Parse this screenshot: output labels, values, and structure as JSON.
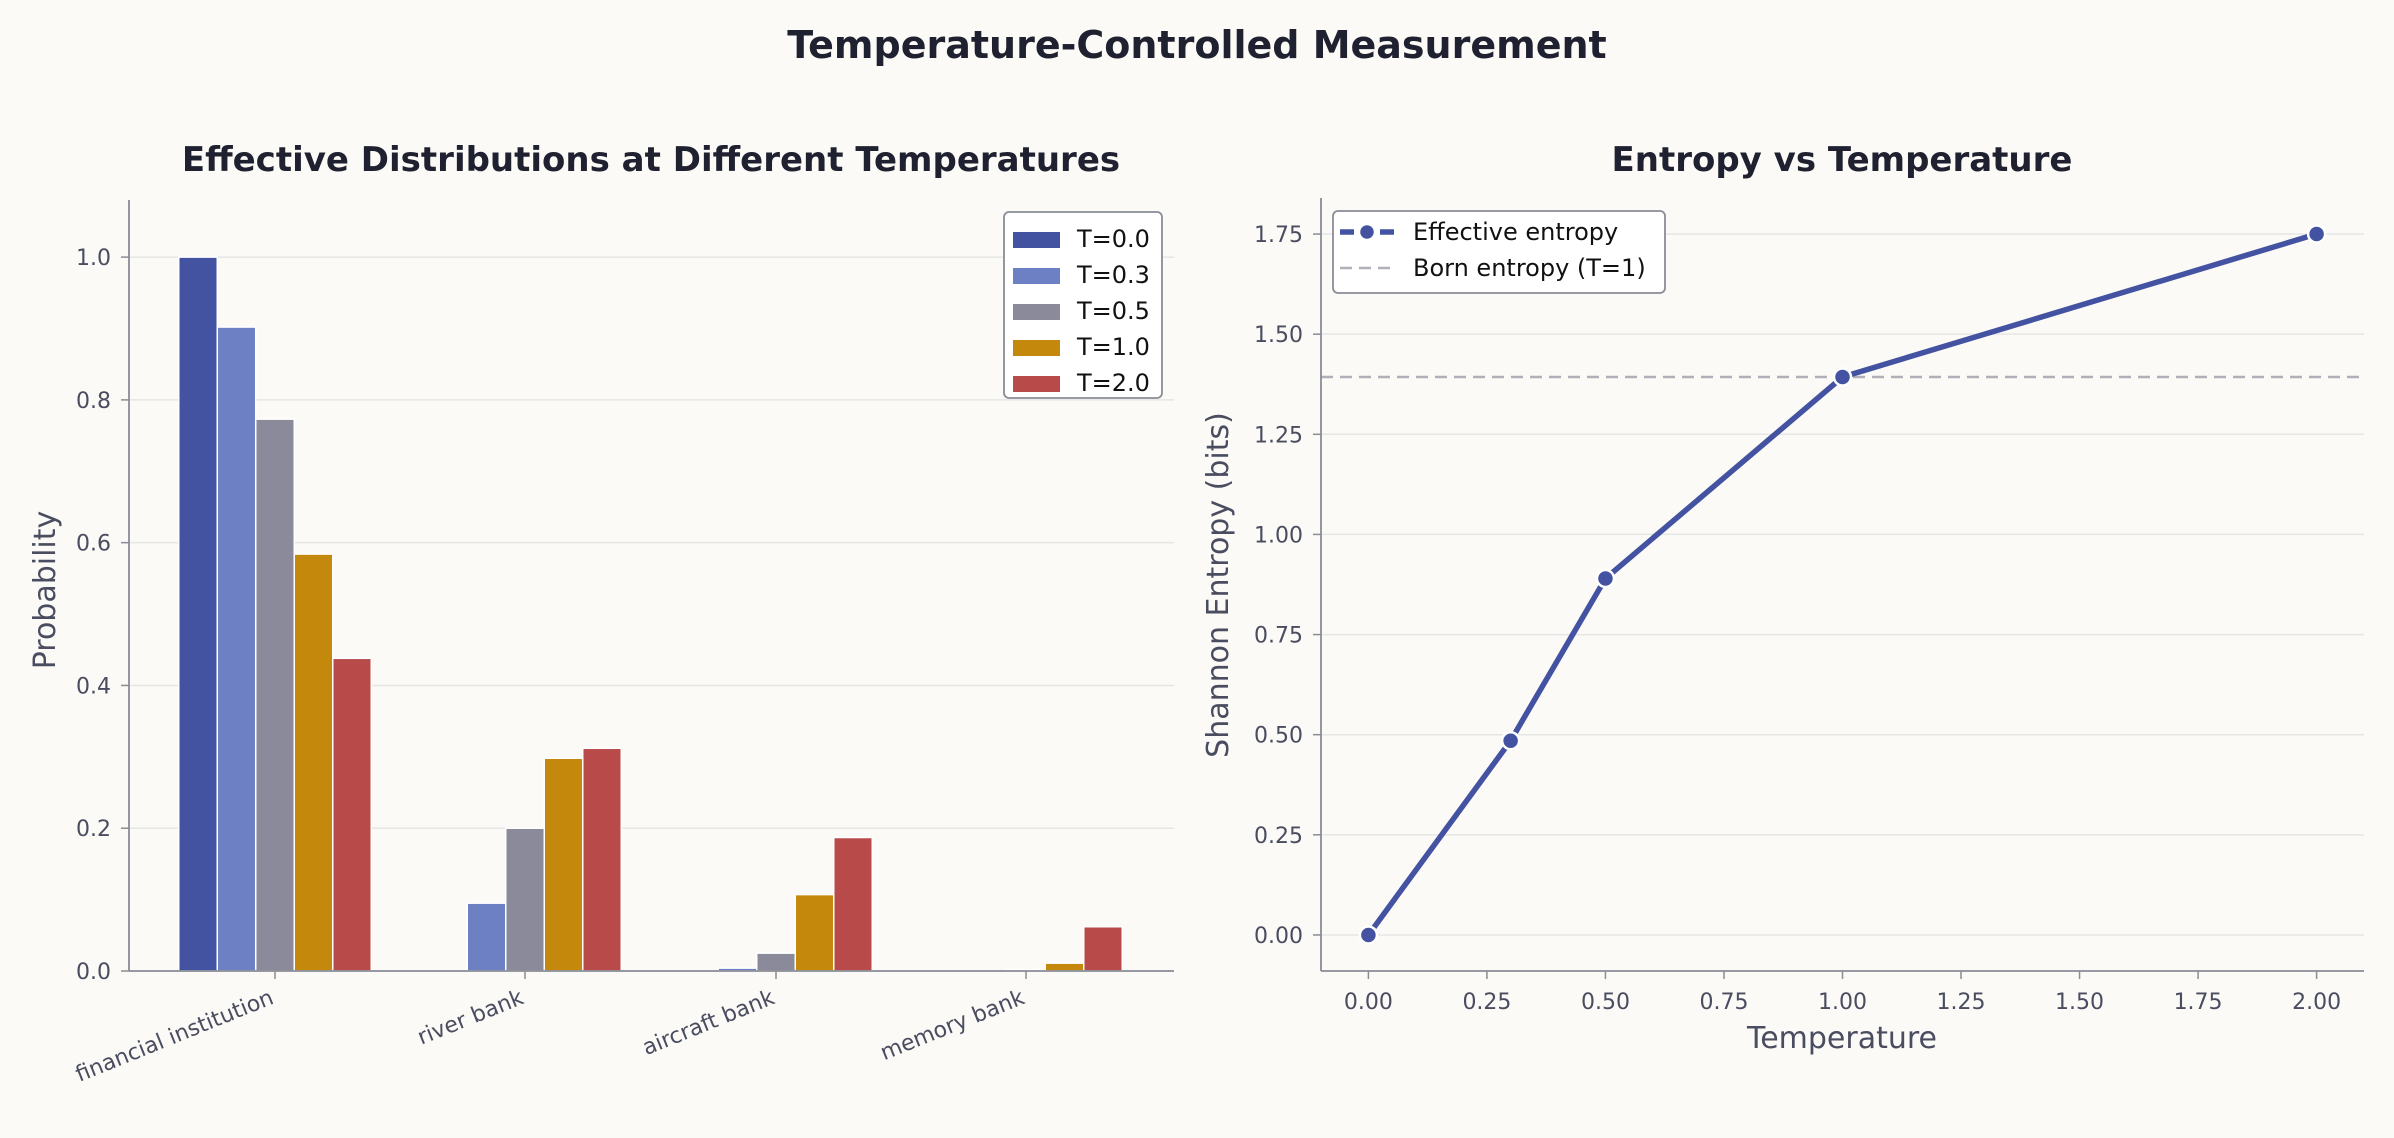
{
  "figure": {
    "title": "Temperature-Controlled Measurement"
  },
  "colors": {
    "T0": "#4353a1",
    "T03": "#6d80c4",
    "T05": "#8a8a9a",
    "T1": "#c4880c",
    "T2": "#b84a4a",
    "line": "#4353a1",
    "born": "#b0b0b8"
  },
  "chart_data": [
    {
      "type": "bar",
      "title": "Effective Distributions at Different Temperatures",
      "xlabel": "",
      "ylabel": "Probability",
      "ylim": [
        0,
        1.08
      ],
      "yticks": [
        "0.0",
        "0.2",
        "0.4",
        "0.6",
        "0.8",
        "1.0"
      ],
      "categories": [
        "financial institution",
        "river bank",
        "aircraft bank",
        "memory bank"
      ],
      "series": [
        {
          "name": "T=0.0",
          "color": "#4353a1",
          "values": [
            1.0,
            0.0,
            0.0,
            0.0
          ]
        },
        {
          "name": "T=0.3",
          "color": "#6d80c4",
          "values": [
            0.902,
            0.095,
            0.004,
            0.0
          ]
        },
        {
          "name": "T=0.5",
          "color": "#8a8a9a",
          "values": [
            0.773,
            0.2,
            0.025,
            0.002
          ]
        },
        {
          "name": "T=1.0",
          "color": "#c4880c",
          "values": [
            0.584,
            0.298,
            0.107,
            0.011
          ]
        },
        {
          "name": "T=2.0",
          "color": "#b84a4a",
          "values": [
            0.438,
            0.312,
            0.187,
            0.062
          ]
        }
      ],
      "grid": true,
      "legend": "top-right"
    },
    {
      "type": "line",
      "title": "Entropy vs Temperature",
      "xlabel": "Temperature",
      "ylabel": "Shannon Entropy (bits)",
      "xlim": [
        -0.1,
        2.1
      ],
      "ylim": [
        -0.09,
        1.84
      ],
      "xticks": [
        "0.00",
        "0.25",
        "0.50",
        "0.75",
        "1.00",
        "1.25",
        "1.50",
        "1.75",
        "2.00"
      ],
      "yticks": [
        "0.00",
        "0.25",
        "0.50",
        "0.75",
        "1.00",
        "1.25",
        "1.50",
        "1.75"
      ],
      "series": [
        {
          "name": "Effective entropy",
          "x": [
            0.0,
            0.3,
            0.5,
            1.0,
            2.0
          ],
          "y": [
            0.0,
            0.485,
            0.89,
            1.393,
            1.75
          ]
        }
      ],
      "reference_line": {
        "name": "Born entropy (T=1)",
        "y": 1.393
      },
      "grid": true,
      "legend": "top-left"
    }
  ]
}
